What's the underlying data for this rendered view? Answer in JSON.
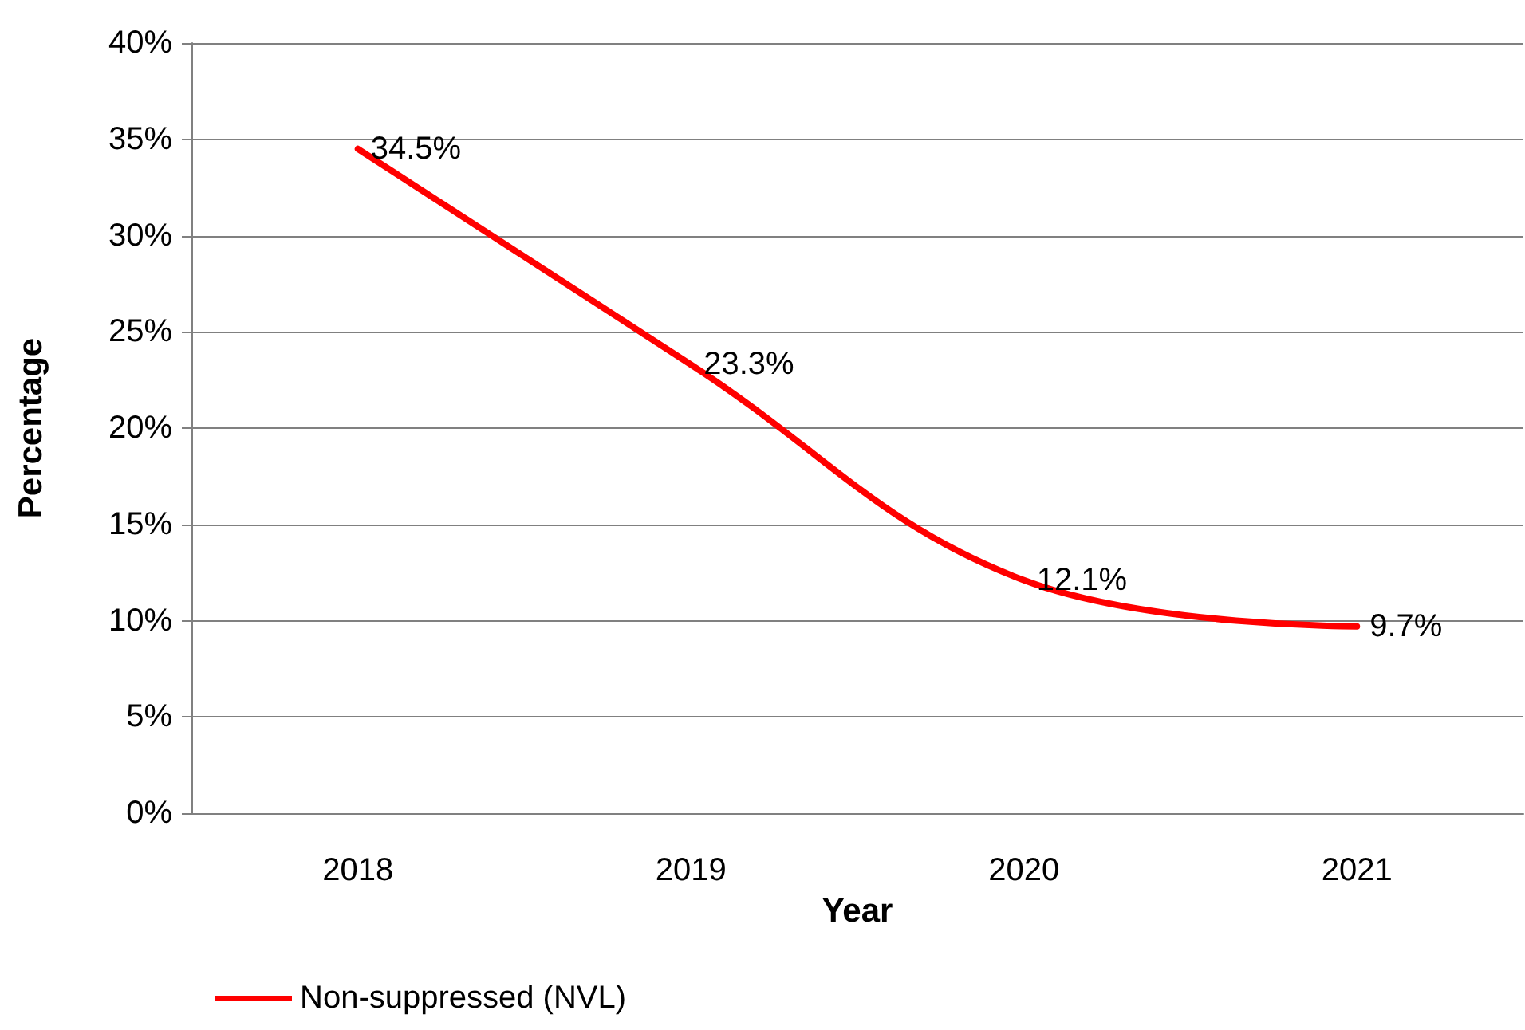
{
  "chart_data": {
    "type": "line",
    "xlabel": "Year",
    "ylabel": "Percentage",
    "categories": [
      "2018",
      "2019",
      "2020",
      "2021"
    ],
    "series": [
      {
        "name": "Non-suppressed (NVL)",
        "color": "#ff0000",
        "values": [
          34.5,
          23.3,
          12.1,
          9.7
        ],
        "value_labels": [
          "34.5%",
          "23.3%",
          "12.1%",
          "9.7%"
        ]
      }
    ],
    "ylim": [
      0,
      40
    ],
    "yticks": [
      {
        "value": 0,
        "label": "0%"
      },
      {
        "value": 5,
        "label": "5%"
      },
      {
        "value": 10,
        "label": "10%"
      },
      {
        "value": 15,
        "label": "15%"
      },
      {
        "value": 20,
        "label": "20%"
      },
      {
        "value": 25,
        "label": "25%"
      },
      {
        "value": 30,
        "label": "30%"
      },
      {
        "value": 35,
        "label": "35%"
      },
      {
        "value": 40,
        "label": "40%"
      }
    ],
    "grid": "y",
    "legend": "bottom left",
    "marker": "none",
    "line_style": "solid"
  }
}
